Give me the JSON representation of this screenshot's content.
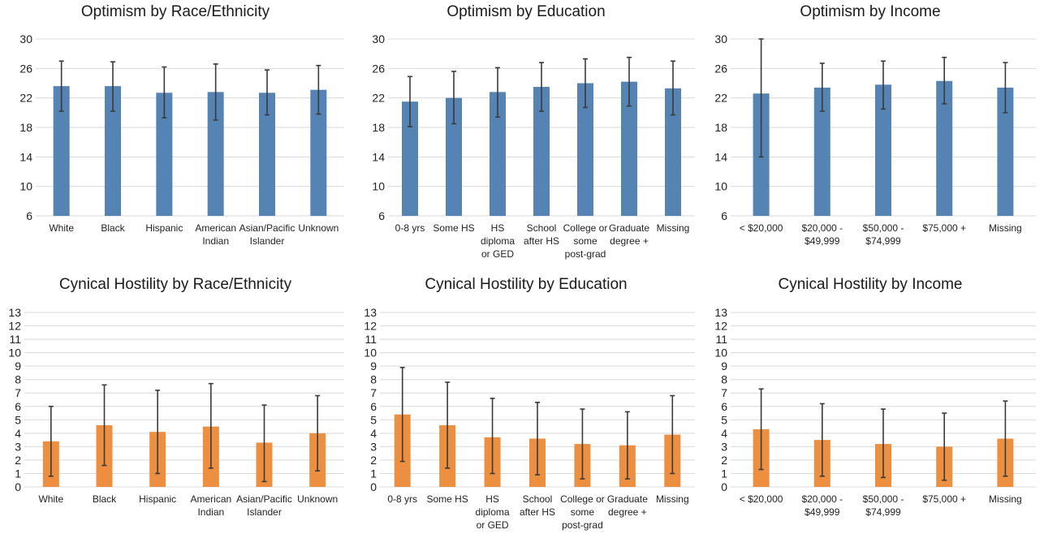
{
  "colors": {
    "optimism_bar": "#5583b4",
    "hostility_bar": "#ed8f40",
    "error_bar": "#3a3a3a",
    "gridline": "#d9d9d9"
  },
  "chart_data": [
    {
      "type": "bar",
      "title": "Optimism by Race/Ethnicity",
      "categories": [
        [
          "White"
        ],
        [
          "Black"
        ],
        [
          "Hispanic"
        ],
        [
          "American",
          "Indian"
        ],
        [
          "Asian/Pacific",
          "Islander"
        ],
        [
          "Unknown"
        ]
      ],
      "values": [
        23.6,
        23.6,
        22.7,
        22.8,
        22.7,
        23.1
      ],
      "error_low": [
        20.2,
        20.2,
        19.3,
        19.0,
        19.7,
        19.8
      ],
      "error_high": [
        27.0,
        26.9,
        26.2,
        26.6,
        25.8,
        26.4
      ],
      "yticks": [
        "6",
        "10",
        "14",
        "18",
        "22",
        "26",
        "30"
      ],
      "ylim": [
        6,
        30
      ],
      "grid": true
    },
    {
      "type": "bar",
      "title": "Optimism by Education",
      "categories": [
        [
          "0-8 yrs"
        ],
        [
          "Some HS"
        ],
        [
          "HS",
          "diploma",
          "or GED"
        ],
        [
          "School",
          "after HS"
        ],
        [
          "College or",
          "some",
          "post-grad"
        ],
        [
          "Graduate",
          "degree +"
        ],
        [
          "Missing"
        ]
      ],
      "values": [
        21.5,
        22.0,
        22.8,
        23.5,
        24.0,
        24.2,
        23.3
      ],
      "error_low": [
        18.1,
        18.5,
        19.4,
        20.2,
        20.7,
        20.9,
        19.7
      ],
      "error_high": [
        24.9,
        25.6,
        26.1,
        26.8,
        27.3,
        27.5,
        27.0
      ],
      "yticks": [
        "6",
        "10",
        "14",
        "18",
        "22",
        "26",
        "30"
      ],
      "ylim": [
        6,
        30
      ],
      "grid": true
    },
    {
      "type": "bar",
      "title": "Optimism by Income",
      "categories": [
        [
          "< $20,000"
        ],
        [
          "$20,000 -",
          "$49,999"
        ],
        [
          "$50,000 -",
          "$74,999"
        ],
        [
          "$75,000 +"
        ],
        [
          "Missing"
        ]
      ],
      "values": [
        22.6,
        23.4,
        23.8,
        24.3,
        23.4
      ],
      "error_low": [
        14.0,
        20.2,
        20.5,
        21.2,
        20.0
      ],
      "error_high": [
        30.0,
        26.7,
        27.0,
        27.5,
        26.8
      ],
      "yticks": [
        "6",
        "10",
        "14",
        "18",
        "22",
        "26",
        "30"
      ],
      "ylim": [
        6,
        30
      ],
      "grid": true
    },
    {
      "type": "bar",
      "title": "Cynical Hostility by Race/Ethnicity",
      "categories": [
        [
          "White"
        ],
        [
          "Black"
        ],
        [
          "Hispanic"
        ],
        [
          "American",
          "Indian"
        ],
        [
          "Asian/Pacific",
          "Islander"
        ],
        [
          "Unknown"
        ]
      ],
      "values": [
        3.4,
        4.6,
        4.1,
        4.5,
        3.3,
        4.0
      ],
      "error_low": [
        0.8,
        1.6,
        1.0,
        1.4,
        0.4,
        1.2
      ],
      "error_high": [
        6.0,
        7.6,
        7.2,
        7.7,
        6.1,
        6.8
      ],
      "yticks": [
        "0",
        "1",
        "2",
        "3",
        "4",
        "5",
        "6",
        "7",
        "8",
        "9",
        "10",
        "11",
        "12",
        "13"
      ],
      "ylim": [
        0,
        13
      ],
      "grid": true
    },
    {
      "type": "bar",
      "title": "Cynical Hostility by Education",
      "categories": [
        [
          "0-8 yrs"
        ],
        [
          "Some HS"
        ],
        [
          "HS",
          "diploma",
          "or GED"
        ],
        [
          "School",
          "after HS"
        ],
        [
          "College or",
          "some",
          "post-grad"
        ],
        [
          "Graduate",
          "degree +"
        ],
        [
          "Missing"
        ]
      ],
      "values": [
        5.4,
        4.6,
        3.7,
        3.6,
        3.2,
        3.1,
        3.9
      ],
      "error_low": [
        1.9,
        1.4,
        1.0,
        0.9,
        0.6,
        0.6,
        1.0
      ],
      "error_high": [
        8.9,
        7.8,
        6.6,
        6.3,
        5.8,
        5.6,
        6.8
      ],
      "yticks": [
        "0",
        "1",
        "2",
        "3",
        "4",
        "5",
        "6",
        "7",
        "8",
        "9",
        "10",
        "11",
        "12",
        "13"
      ],
      "ylim": [
        0,
        13
      ],
      "grid": true
    },
    {
      "type": "bar",
      "title": "Cynical Hostility by Income",
      "categories": [
        [
          "< $20,000"
        ],
        [
          "$20,000 -",
          "$49,999"
        ],
        [
          "$50,000 -",
          "$74,999"
        ],
        [
          "$75,000 +"
        ],
        [
          "Missing"
        ]
      ],
      "values": [
        4.3,
        3.5,
        3.2,
        3.0,
        3.6
      ],
      "error_low": [
        1.3,
        0.8,
        0.7,
        0.5,
        0.8
      ],
      "error_high": [
        7.3,
        6.2,
        5.8,
        5.5,
        6.4
      ],
      "yticks": [
        "0",
        "1",
        "2",
        "3",
        "4",
        "5",
        "6",
        "7",
        "8",
        "9",
        "10",
        "11",
        "12",
        "13"
      ],
      "ylim": [
        0,
        13
      ],
      "grid": true
    }
  ]
}
